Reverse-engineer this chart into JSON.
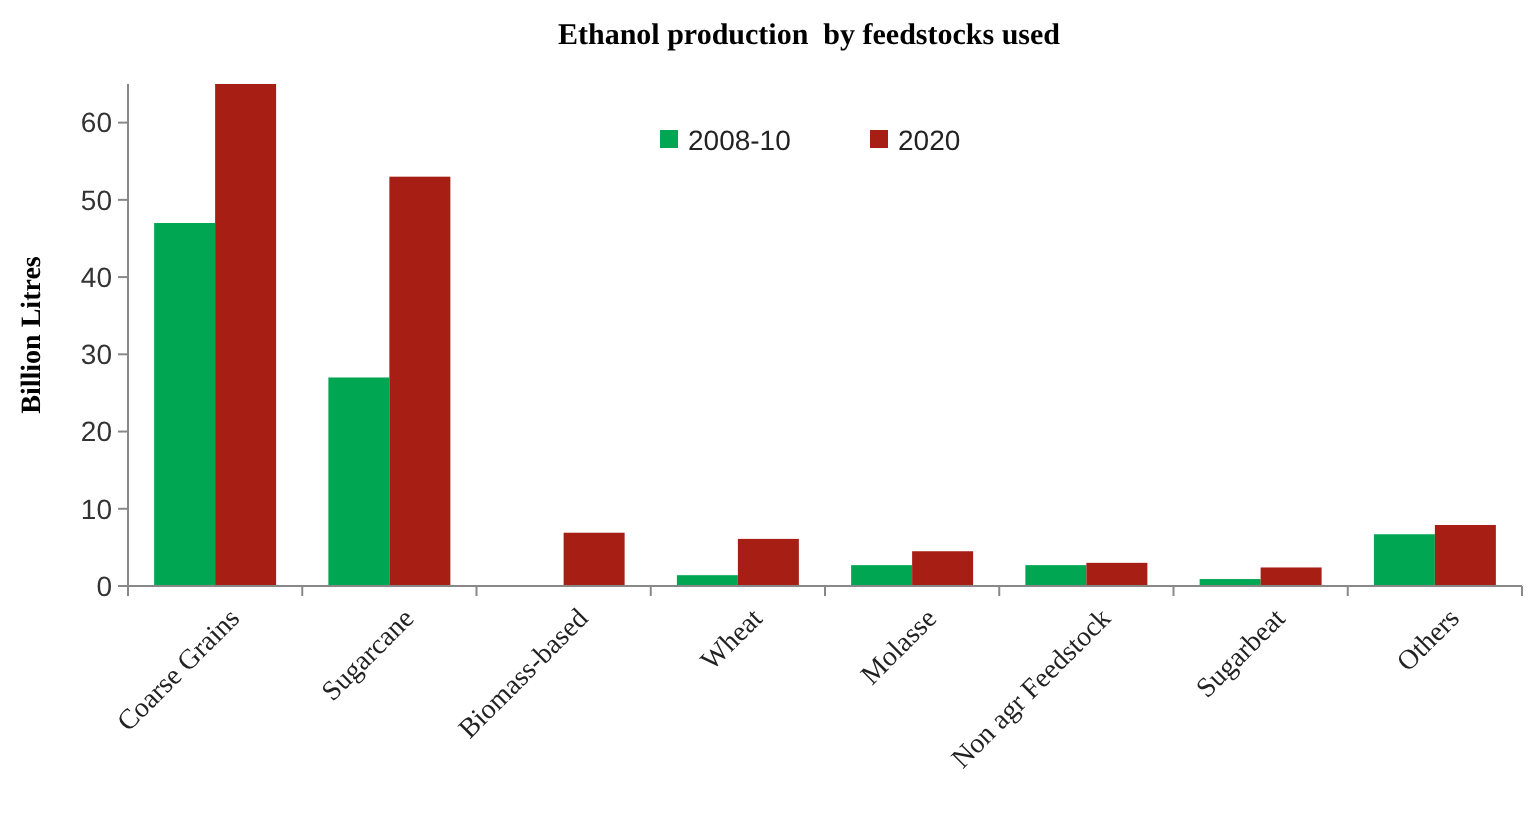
{
  "chart_data": {
    "type": "bar",
    "title": "Ethanol production  by feedstocks used",
    "ylabel": "Billion Litres",
    "categories": [
      "Coarse Grains",
      "Sugarcane",
      "Biomass-based",
      "Wheat",
      "Molasse",
      "Non agr Feedstock",
      "Sugarbeat",
      "Others"
    ],
    "series": [
      {
        "name": "2008-10",
        "color": "#00a651",
        "values": [
          47,
          27,
          0,
          1.4,
          2.7,
          2.7,
          0.9,
          6.7
        ]
      },
      {
        "name": "2020",
        "color": "#a61e14",
        "values": [
          65,
          53,
          6.9,
          6.1,
          4.5,
          3,
          2.4,
          7.9
        ]
      }
    ],
    "ylim": [
      0,
      65
    ],
    "yticks": [
      0,
      10,
      20,
      30,
      40,
      50,
      60
    ],
    "grid": false,
    "legend": "top"
  }
}
